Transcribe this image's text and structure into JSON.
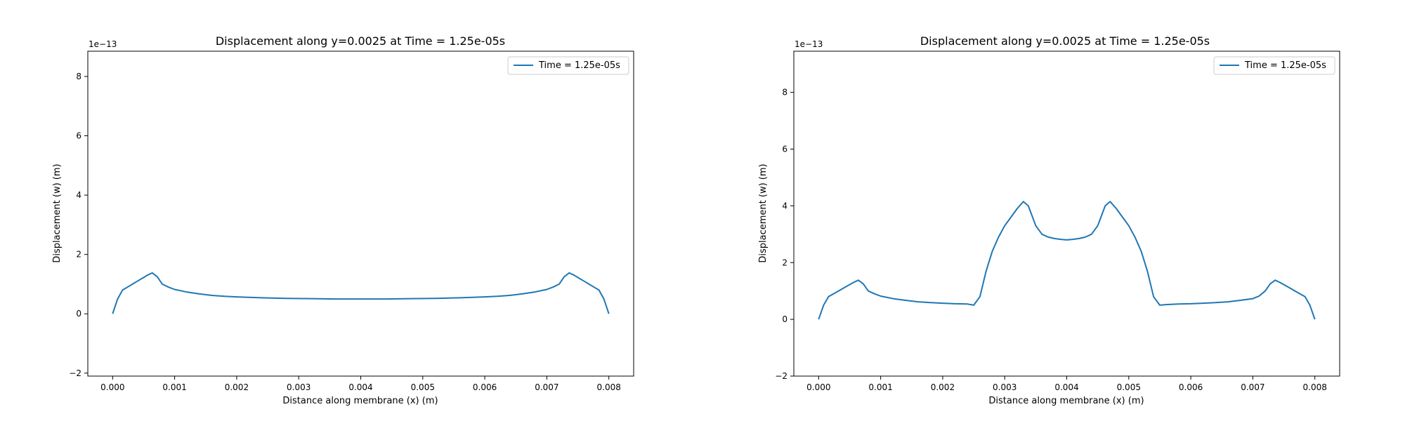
{
  "figure": {
    "plots": [
      {
        "title": "Displacement along y=0.0025 at Time = 1.25e-05s",
        "offset_label": "1e−13",
        "legend_label": "Time = 1.25e-05s"
      },
      {
        "title": "Displacement along y=0.0025 at Time = 1.25e-05s",
        "offset_label": "1e−13",
        "legend_label": "Time = 1.25e-05s"
      }
    ]
  },
  "chart_data": [
    {
      "type": "line",
      "title": "Displacement along y=0.0025 at Time = 1.25e-05s",
      "xlabel": "Distance along membrane (x) (m)",
      "ylabel": "Displacement (w) (m)",
      "y_scale_note": "1e−13",
      "xlim": [
        -0.0004,
        0.0084
      ],
      "ylim": [
        -2.1,
        8.85
      ],
      "x_ticks": [
        0.0,
        0.001,
        0.002,
        0.003,
        0.004,
        0.005,
        0.006,
        0.007,
        0.008
      ],
      "x_tick_labels": [
        "0.000",
        "0.001",
        "0.002",
        "0.003",
        "0.004",
        "0.005",
        "0.006",
        "0.007",
        "0.008"
      ],
      "y_ticks": [
        -2,
        0,
        2,
        4,
        6,
        8
      ],
      "y_tick_labels": [
        "−2",
        "0",
        "2",
        "4",
        "6",
        "8"
      ],
      "legend_position": "top-right",
      "grid": false,
      "color": "#1f77b4",
      "series": [
        {
          "name": "Time = 1.25e-05s",
          "x": [
            0.0,
            8e-05,
            0.00016,
            0.00024,
            0.00032,
            0.0004,
            0.00048,
            0.00056,
            0.00064,
            0.00072,
            0.0008,
            0.0009,
            0.001,
            0.0012,
            0.0014,
            0.0016,
            0.0018,
            0.002,
            0.0024,
            0.0028,
            0.0032,
            0.0036,
            0.004,
            0.0044,
            0.0048,
            0.0052,
            0.0056,
            0.006,
            0.0062,
            0.0064,
            0.0066,
            0.0068,
            0.007,
            0.0071,
            0.0072,
            0.00728,
            0.00736,
            0.00744,
            0.00752,
            0.0076,
            0.00768,
            0.00776,
            0.00784,
            0.00792,
            0.008
          ],
          "y": [
            0.0,
            0.5,
            0.8,
            0.9,
            1.0,
            1.1,
            1.2,
            1.3,
            1.38,
            1.25,
            1.0,
            0.9,
            0.82,
            0.73,
            0.67,
            0.62,
            0.59,
            0.57,
            0.54,
            0.52,
            0.51,
            0.5,
            0.5,
            0.5,
            0.51,
            0.52,
            0.54,
            0.57,
            0.59,
            0.62,
            0.67,
            0.73,
            0.82,
            0.9,
            1.0,
            1.25,
            1.38,
            1.3,
            1.2,
            1.1,
            1.0,
            0.9,
            0.8,
            0.5,
            0.0
          ]
        }
      ]
    },
    {
      "type": "line",
      "title": "Displacement along y=0.0025 at Time = 1.25e-05s",
      "xlabel": "Distance along membrane (x) (m)",
      "ylabel": "Displacement (w) (m)",
      "y_scale_note": "1e−13",
      "xlim": [
        -0.0004,
        0.0084
      ],
      "ylim": [
        -2.0,
        9.45
      ],
      "x_ticks": [
        0.0,
        0.001,
        0.002,
        0.003,
        0.004,
        0.005,
        0.006,
        0.007,
        0.008
      ],
      "x_tick_labels": [
        "0.000",
        "0.001",
        "0.002",
        "0.003",
        "0.004",
        "0.005",
        "0.006",
        "0.007",
        "0.008"
      ],
      "y_ticks": [
        -2,
        0,
        2,
        4,
        6,
        8
      ],
      "y_tick_labels": [
        "−2",
        "0",
        "2",
        "4",
        "6",
        "8"
      ],
      "legend_position": "top-right",
      "grid": false,
      "color": "#1f77b4",
      "series": [
        {
          "name": "Time = 1.25e-05s",
          "x": [
            0.0,
            8e-05,
            0.00016,
            0.00024,
            0.00032,
            0.0004,
            0.00048,
            0.00056,
            0.00064,
            0.00072,
            0.0008,
            0.0009,
            0.001,
            0.0012,
            0.0014,
            0.0016,
            0.0018,
            0.002,
            0.0022,
            0.0024,
            0.0025,
            0.0026,
            0.0027,
            0.0028,
            0.0029,
            0.003,
            0.0031,
            0.0032,
            0.0033,
            0.00338,
            0.0035,
            0.0036,
            0.0037,
            0.0038,
            0.0039,
            0.004,
            0.0041,
            0.0042,
            0.0043,
            0.0044,
            0.0045,
            0.00462,
            0.0047,
            0.0048,
            0.0049,
            0.005,
            0.0051,
            0.0052,
            0.0053,
            0.0054,
            0.0055,
            0.0056,
            0.0058,
            0.006,
            0.0062,
            0.0064,
            0.0066,
            0.0068,
            0.007,
            0.0071,
            0.0072,
            0.00728,
            0.00736,
            0.00744,
            0.00752,
            0.0076,
            0.00768,
            0.00776,
            0.00784,
            0.00792,
            0.008
          ],
          "y": [
            0.0,
            0.5,
            0.8,
            0.9,
            1.0,
            1.1,
            1.2,
            1.3,
            1.38,
            1.25,
            1.0,
            0.9,
            0.82,
            0.73,
            0.67,
            0.62,
            0.59,
            0.57,
            0.55,
            0.54,
            0.5,
            0.8,
            1.7,
            2.4,
            2.9,
            3.3,
            3.6,
            3.9,
            4.15,
            4.0,
            3.3,
            3.0,
            2.9,
            2.85,
            2.82,
            2.8,
            2.82,
            2.85,
            2.9,
            3.0,
            3.3,
            4.0,
            4.15,
            3.9,
            3.6,
            3.3,
            2.9,
            2.4,
            1.7,
            0.8,
            0.5,
            0.52,
            0.54,
            0.55,
            0.57,
            0.59,
            0.62,
            0.67,
            0.73,
            0.82,
            1.0,
            1.25,
            1.38,
            1.3,
            1.2,
            1.1,
            1.0,
            0.9,
            0.8,
            0.5,
            0.0
          ]
        }
      ]
    }
  ]
}
